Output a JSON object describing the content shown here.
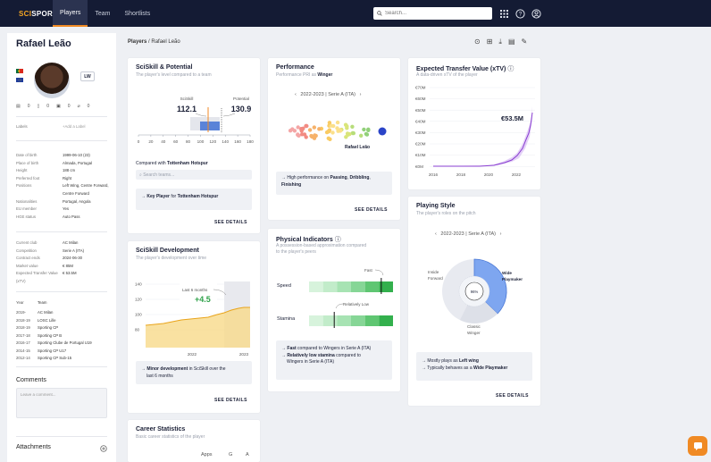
{
  "nav": {
    "logo_a": "SCI",
    "logo_b": "SPORTS",
    "tabs": [
      "Players",
      "Team",
      "Shortlists"
    ],
    "search_placeholder": "Search..."
  },
  "breadcrumb": {
    "root": "Players",
    "sep": "/",
    "current": "Rafael Leão"
  },
  "player": {
    "name": "Rafael Leão",
    "position": "LW",
    "counts": [
      "0",
      "0",
      "0",
      "0"
    ],
    "labels_key": "Labels",
    "labels_value": "+Add a Label",
    "info": [
      {
        "k": "Date of birth",
        "v": "1999-06-10 (23)"
      },
      {
        "k": "Place of birth",
        "v": "Almada, Portugal"
      },
      {
        "k": "Height",
        "v": "188 cm"
      },
      {
        "k": "Preferred foot",
        "v": "Right"
      },
      {
        "k": "Positions",
        "v": "Left Wing, Centre Forward,"
      },
      {
        "k": "",
        "v": "Centre Forward"
      },
      {
        "k": "Nationalities",
        "v": "Portugal, Angola"
      },
      {
        "k": "EU member",
        "v": "Yes"
      },
      {
        "k": "HGE status",
        "v": "Auto Pass"
      }
    ],
    "contract": [
      {
        "k": "Current club",
        "v": "AC Milan"
      },
      {
        "k": "Competition",
        "v": "Serie A (ITA)"
      },
      {
        "k": "Contract ends",
        "v": "2024-06-30"
      },
      {
        "k": "Market value",
        "v": "€ 85M"
      },
      {
        "k": "Expected Transfer Value",
        "v": "€ 53.5M"
      },
      {
        "k": "(xTV)",
        "v": ""
      }
    ],
    "career_header": {
      "y": "Year",
      "t": "Team"
    },
    "career": [
      {
        "y": "2019-",
        "t": "AC Milan"
      },
      {
        "y": "2018-19",
        "t": "LOSC Lille"
      },
      {
        "y": "2018-19",
        "t": "Sporting CP"
      },
      {
        "y": "2017-18",
        "t": "Sporting CP B"
      },
      {
        "y": "2016-17",
        "t": "Sporting Clube de Portugal U19"
      },
      {
        "y": "2014-15",
        "t": "Sporting CP U17"
      },
      {
        "y": "2012-14",
        "t": "Sporting CP Sub-15"
      }
    ],
    "comments_title": "Comments",
    "comment_placeholder": "Leave a comment...",
    "attachments_title": "Attachments"
  },
  "sciskill": {
    "title": "SciSkill & Potential",
    "sub": "The player's level compared to a team",
    "sciskill_label": "SciSkill",
    "sciskill_value": "112.1",
    "potential_label": "Potential",
    "potential_value": "130.9",
    "axis": [
      "0",
      "20",
      "40",
      "60",
      "80",
      "100",
      "120",
      "140",
      "160",
      "180"
    ],
    "compared_prefix": "Compared with ",
    "compared_team": "Tottenham Hotspur",
    "search_placeholder": "Search teams...",
    "insight_a": "→ ",
    "insight_b": "Key Player",
    "insight_c": " for ",
    "insight_d": "Tottenham Hotspur",
    "see": "SEE DETAILS"
  },
  "performance": {
    "title": "Performance",
    "sub_a": "Performance PRI as ",
    "sub_b": "Winger",
    "season": "2022-2023 | Serie A (ITA)",
    "player_label": "Rafael Leão",
    "insight_a": "→ High performance on ",
    "insight_b": "Passing",
    "insight_c": ", ",
    "insight_d": "Dribbling",
    "insight_e": ",",
    "insight_f": "Finishing",
    "see": "SEE DETAILS"
  },
  "xtv": {
    "title": "Expected Transfer Value (xTV)",
    "sub": "A data-driven xTV of the player",
    "callout": "€53.5M",
    "yticks": [
      "€70M",
      "€60M",
      "€50M",
      "€40M",
      "€30M",
      "€20M",
      "€10M",
      "€0M"
    ],
    "xticks": [
      "2016",
      "2018",
      "2020",
      "2022"
    ]
  },
  "development": {
    "title": "SciSkill Development",
    "sub": "The player's development over time",
    "callout_label": "Last 6 months",
    "callout_value": "+4.5",
    "yticks": [
      "140",
      "120",
      "100",
      "80"
    ],
    "xticks": [
      "2022",
      "2023"
    ],
    "insight_a": "→ ",
    "insight_b": "Minor development",
    "insight_c": " in SciSkill over the",
    "insight_d": "last 6 months",
    "see": "SEE DETAILS"
  },
  "physical": {
    "title": "Physical Indicators",
    "sub_a": "A possession-based approximation compared",
    "sub_b": "to the player's peers",
    "speed": "Speed",
    "stamina": "Stamina",
    "speed_tag": "Fast",
    "stamina_tag": "Relatively Low",
    "speed_level": 0.86,
    "stamina_level": 0.3,
    "line1_b": "Fast",
    "line1_c": " compared to Wingers in Serie A (ITA)",
    "line2_b": "Relatively low stamina",
    "line2_c": " compared to",
    "line2_d": "Wingers in Serie A (ITA)"
  },
  "style": {
    "title": "Playing Style",
    "sub": "The player's roles on the pitch",
    "season": "2022-2023 | Serie A (ITA)",
    "inside_forward_a": "Inside",
    "inside_forward_b": "Forward",
    "wide_playmaker_a": "Wide",
    "wide_playmaker_b": "Playmaker",
    "classic_winger_a": "Classic",
    "classic_winger_b": "Winger",
    "center_value": "96%",
    "line1_a": "→ Mostly plays as ",
    "line1_b": "Left wing",
    "line2_a": "→ Typically behaves as a ",
    "line2_b": "Wide Playmaker",
    "see": "SEE DETAILS"
  },
  "career_stats": {
    "title": "Career Statistics",
    "sub": "Basic career statistics of the player",
    "cols": [
      "Apps",
      "G",
      "A"
    ]
  },
  "colors": {
    "accent": "#f08a24",
    "nav": "#141b34",
    "purple": "#8a3fd1",
    "blue": "#4a78d6",
    "green": "#2fbf4a"
  }
}
